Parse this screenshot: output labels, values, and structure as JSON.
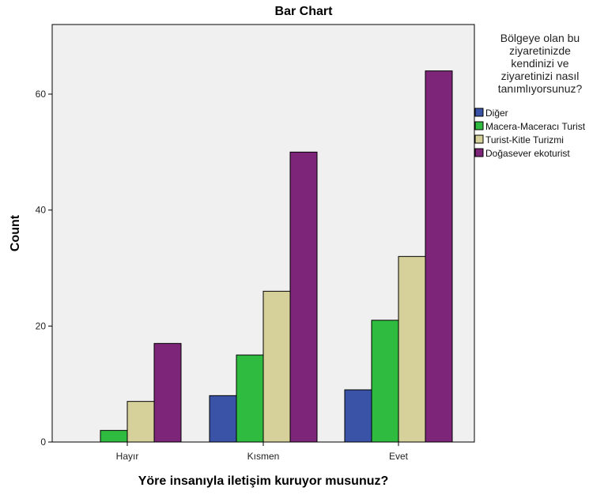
{
  "chart_data": {
    "type": "bar",
    "title": "Bar Chart",
    "xlabel": "Yöre insanıyla iletişim kuruyor musunuz?",
    "ylabel": "Count",
    "categories": [
      "Hayır",
      "Kısmen",
      "Evet"
    ],
    "ylim": [
      0,
      72
    ],
    "yticks": [
      0,
      20,
      40,
      60
    ],
    "grid": false,
    "legend": {
      "placement": "right",
      "title_lines": [
        "Bölgeye olan bu",
        "ziyaretinizde",
        "kendinizi ve",
        "ziyaretinizi nasıl",
        "tanımlıyorsunuz?"
      ]
    },
    "series": [
      {
        "name": "Diğer",
        "color": "#3a53a6",
        "values": [
          0,
          8,
          9
        ]
      },
      {
        "name": "Macera-Maceracı Turist",
        "color": "#2fbb3f",
        "values": [
          2,
          15,
          21
        ]
      },
      {
        "name": "Turist-Kitle Turizmi",
        "color": "#d6d19a",
        "values": [
          7,
          26,
          32
        ]
      },
      {
        "name": "Doğasever ekoturist",
        "color": "#7d2578",
        "values": [
          17,
          50,
          64
        ]
      }
    ]
  },
  "colors": {
    "plot_background": "#f0f0f0",
    "bar_outline": "#000000"
  }
}
